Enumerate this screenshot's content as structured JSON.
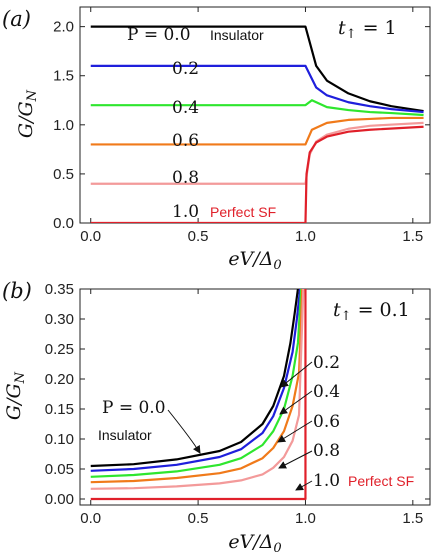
{
  "chart_data": [
    {
      "type": "line",
      "panel_label": "(a)",
      "xlabel": "eV/Δ0",
      "ylabel": "G/GN",
      "xlim": [
        -0.05,
        1.58
      ],
      "ylim": [
        0.0,
        2.2
      ],
      "xticks": [
        "0.0",
        "0.5",
        "1.0",
        "1.5"
      ],
      "yticks": [
        "0.0",
        "0.5",
        "1.0",
        "1.5",
        "2.0"
      ],
      "parameter_text": "t↑ = 1",
      "annotations": {
        "p_prefix": "P = 0.0",
        "insulator": "Insulator",
        "perfect_sf": "Perfect SF",
        "labels": [
          "0.2",
          "0.4",
          "0.6",
          "0.8",
          "1.0"
        ]
      },
      "series": [
        {
          "name": "P = 0.0",
          "color": "#000000",
          "below_gap": 2.0,
          "at_gap": 2.0,
          "tail": [
            [
              1.0,
              2.0
            ],
            [
              1.05,
              1.6
            ],
            [
              1.1,
              1.45
            ],
            [
              1.2,
              1.32
            ],
            [
              1.3,
              1.24
            ],
            [
              1.4,
              1.19
            ],
            [
              1.55,
              1.14
            ]
          ]
        },
        {
          "name": "0.2",
          "color": "#1f1fdc",
          "below_gap": 1.6,
          "at_gap": 1.6,
          "tail": [
            [
              1.0,
              1.6
            ],
            [
              1.05,
              1.38
            ],
            [
              1.1,
              1.3
            ],
            [
              1.2,
              1.23
            ],
            [
              1.3,
              1.19
            ],
            [
              1.4,
              1.16
            ],
            [
              1.55,
              1.13
            ]
          ]
        },
        {
          "name": "0.4",
          "color": "#2ee62e",
          "below_gap": 1.2,
          "at_gap": 1.25,
          "tail": [
            [
              1.0,
              1.2
            ],
            [
              1.03,
              1.25
            ],
            [
              1.1,
              1.18
            ],
            [
              1.2,
              1.15
            ],
            [
              1.3,
              1.13
            ],
            [
              1.4,
              1.12
            ],
            [
              1.55,
              1.1
            ]
          ]
        },
        {
          "name": "0.6",
          "color": "#f07a1a",
          "below_gap": 0.8,
          "at_gap": 0.8,
          "tail": [
            [
              1.0,
              0.8
            ],
            [
              1.03,
              0.95
            ],
            [
              1.1,
              1.02
            ],
            [
              1.2,
              1.05
            ],
            [
              1.3,
              1.06
            ],
            [
              1.4,
              1.07
            ],
            [
              1.55,
              1.07
            ]
          ]
        },
        {
          "name": "0.8",
          "color": "#f39a9a",
          "below_gap": 0.4,
          "at_gap": 0.4,
          "tail": [
            [
              1.0,
              0.4
            ],
            [
              1.02,
              0.7
            ],
            [
              1.05,
              0.83
            ],
            [
              1.1,
              0.9
            ],
            [
              1.2,
              0.96
            ],
            [
              1.3,
              0.99
            ],
            [
              1.55,
              1.02
            ]
          ]
        },
        {
          "name": "1.0",
          "color": "#e0202a",
          "below_gap": 0.0,
          "at_gap": 0.0,
          "tail": [
            [
              1.0,
              0.0
            ],
            [
              1.005,
              0.5
            ],
            [
              1.02,
              0.72
            ],
            [
              1.05,
              0.82
            ],
            [
              1.1,
              0.88
            ],
            [
              1.2,
              0.93
            ],
            [
              1.3,
              0.95
            ],
            [
              1.55,
              0.98
            ]
          ]
        }
      ]
    },
    {
      "type": "line",
      "panel_label": "(b)",
      "xlabel": "eV/Δ0",
      "ylabel": "G/GN",
      "xlim": [
        -0.05,
        1.58
      ],
      "ylim": [
        -0.01,
        0.35
      ],
      "xticks": [
        "0.0",
        "0.5",
        "1.0",
        "1.5"
      ],
      "yticks": [
        "0.00",
        "0.05",
        "0.10",
        "0.15",
        "0.20",
        "0.25",
        "0.30",
        "0.35"
      ],
      "parameter_text": "t↑ = 0.1",
      "annotations": {
        "p_prefix": "P = 0.0",
        "insulator": "Insulator",
        "perfect_sf": "Perfect SF",
        "labels": [
          "0.2",
          "0.4",
          "0.6",
          "0.8",
          "1.0"
        ]
      },
      "series": [
        {
          "name": "P = 0.0",
          "color": "#000000",
          "values": [
            [
              0.0,
              0.055
            ],
            [
              0.2,
              0.058
            ],
            [
              0.4,
              0.066
            ],
            [
              0.6,
              0.08
            ],
            [
              0.7,
              0.095
            ],
            [
              0.8,
              0.125
            ],
            [
              0.85,
              0.155
            ],
            [
              0.9,
              0.205
            ],
            [
              0.93,
              0.26
            ],
            [
              0.95,
              0.31
            ],
            [
              0.965,
              0.35
            ]
          ]
        },
        {
          "name": "0.2",
          "color": "#1f1fdc",
          "values": [
            [
              0.0,
              0.047
            ],
            [
              0.2,
              0.05
            ],
            [
              0.4,
              0.057
            ],
            [
              0.6,
              0.07
            ],
            [
              0.7,
              0.083
            ],
            [
              0.8,
              0.11
            ],
            [
              0.85,
              0.138
            ],
            [
              0.9,
              0.185
            ],
            [
              0.94,
              0.245
            ],
            [
              0.96,
              0.3
            ],
            [
              0.975,
              0.35
            ]
          ]
        },
        {
          "name": "0.4",
          "color": "#2ee62e",
          "values": [
            [
              0.0,
              0.037
            ],
            [
              0.2,
              0.04
            ],
            [
              0.4,
              0.046
            ],
            [
              0.6,
              0.057
            ],
            [
              0.7,
              0.068
            ],
            [
              0.8,
              0.09
            ],
            [
              0.85,
              0.113
            ],
            [
              0.9,
              0.15
            ],
            [
              0.94,
              0.205
            ],
            [
              0.965,
              0.26
            ],
            [
              0.98,
              0.35
            ]
          ]
        },
        {
          "name": "0.6",
          "color": "#f07a1a",
          "values": [
            [
              0.0,
              0.028
            ],
            [
              0.2,
              0.03
            ],
            [
              0.4,
              0.035
            ],
            [
              0.6,
              0.043
            ],
            [
              0.7,
              0.051
            ],
            [
              0.8,
              0.068
            ],
            [
              0.85,
              0.085
            ],
            [
              0.9,
              0.113
            ],
            [
              0.94,
              0.155
            ],
            [
              0.97,
              0.21
            ],
            [
              0.985,
              0.35
            ]
          ]
        },
        {
          "name": "0.8",
          "color": "#f39a9a",
          "values": [
            [
              0.0,
              0.017
            ],
            [
              0.2,
              0.018
            ],
            [
              0.4,
              0.021
            ],
            [
              0.6,
              0.026
            ],
            [
              0.7,
              0.031
            ],
            [
              0.8,
              0.041
            ],
            [
              0.85,
              0.052
            ],
            [
              0.9,
              0.07
            ],
            [
              0.94,
              0.097
            ],
            [
              0.97,
              0.14
            ],
            [
              0.99,
              0.35
            ]
          ]
        },
        {
          "name": "1.0",
          "color": "#e0202a",
          "values": [
            [
              0.0,
              0.0
            ],
            [
              0.9,
              0.0
            ],
            [
              0.99,
              0.0
            ],
            [
              1.0,
              0.0
            ],
            [
              1.0,
              0.35
            ]
          ]
        }
      ]
    }
  ]
}
